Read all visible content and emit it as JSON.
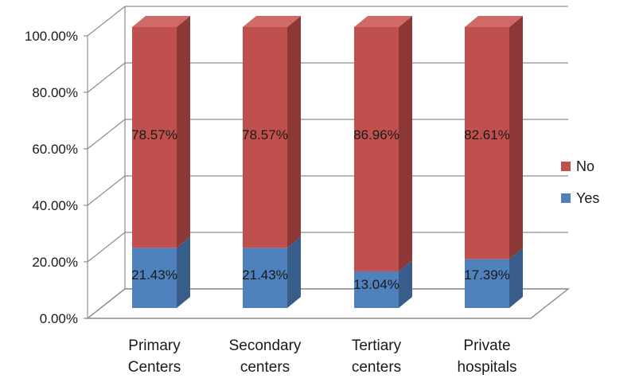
{
  "chart_data": {
    "type": "bar",
    "stacked": true,
    "percent_stacked": true,
    "three_d": true,
    "categories": [
      [
        "Primary",
        "Centers"
      ],
      [
        "Secondary",
        "centers"
      ],
      [
        "Tertiary",
        "centers"
      ],
      [
        "Private",
        "hospitals"
      ]
    ],
    "series": [
      {
        "name": "Yes",
        "values": [
          21.43,
          21.43,
          13.04,
          17.39
        ],
        "labels": [
          "21.43%",
          "21.43%",
          "13.04%",
          "17.39%"
        ]
      },
      {
        "name": "No",
        "values": [
          78.57,
          78.57,
          86.96,
          82.61
        ],
        "labels": [
          "78.57%",
          "78.57%",
          "86.96%",
          "82.61%"
        ]
      }
    ],
    "y_ticks": [
      "0.00%",
      "20.00%",
      "40.00%",
      "60.00%",
      "80.00%",
      "100.00%"
    ],
    "ylim": [
      0,
      100
    ],
    "grid": true,
    "legend_position": "right",
    "title": "",
    "xlabel": "",
    "ylabel": ""
  },
  "colors": {
    "yes_front": "#4f81bd",
    "yes_side": "#385d8a",
    "yes_top": "#6f9bd1",
    "no_front": "#c0504d",
    "no_side": "#8c3836",
    "no_top": "#d06a67",
    "grid": "#8c8c8c",
    "floor": "#8c8c8c"
  }
}
